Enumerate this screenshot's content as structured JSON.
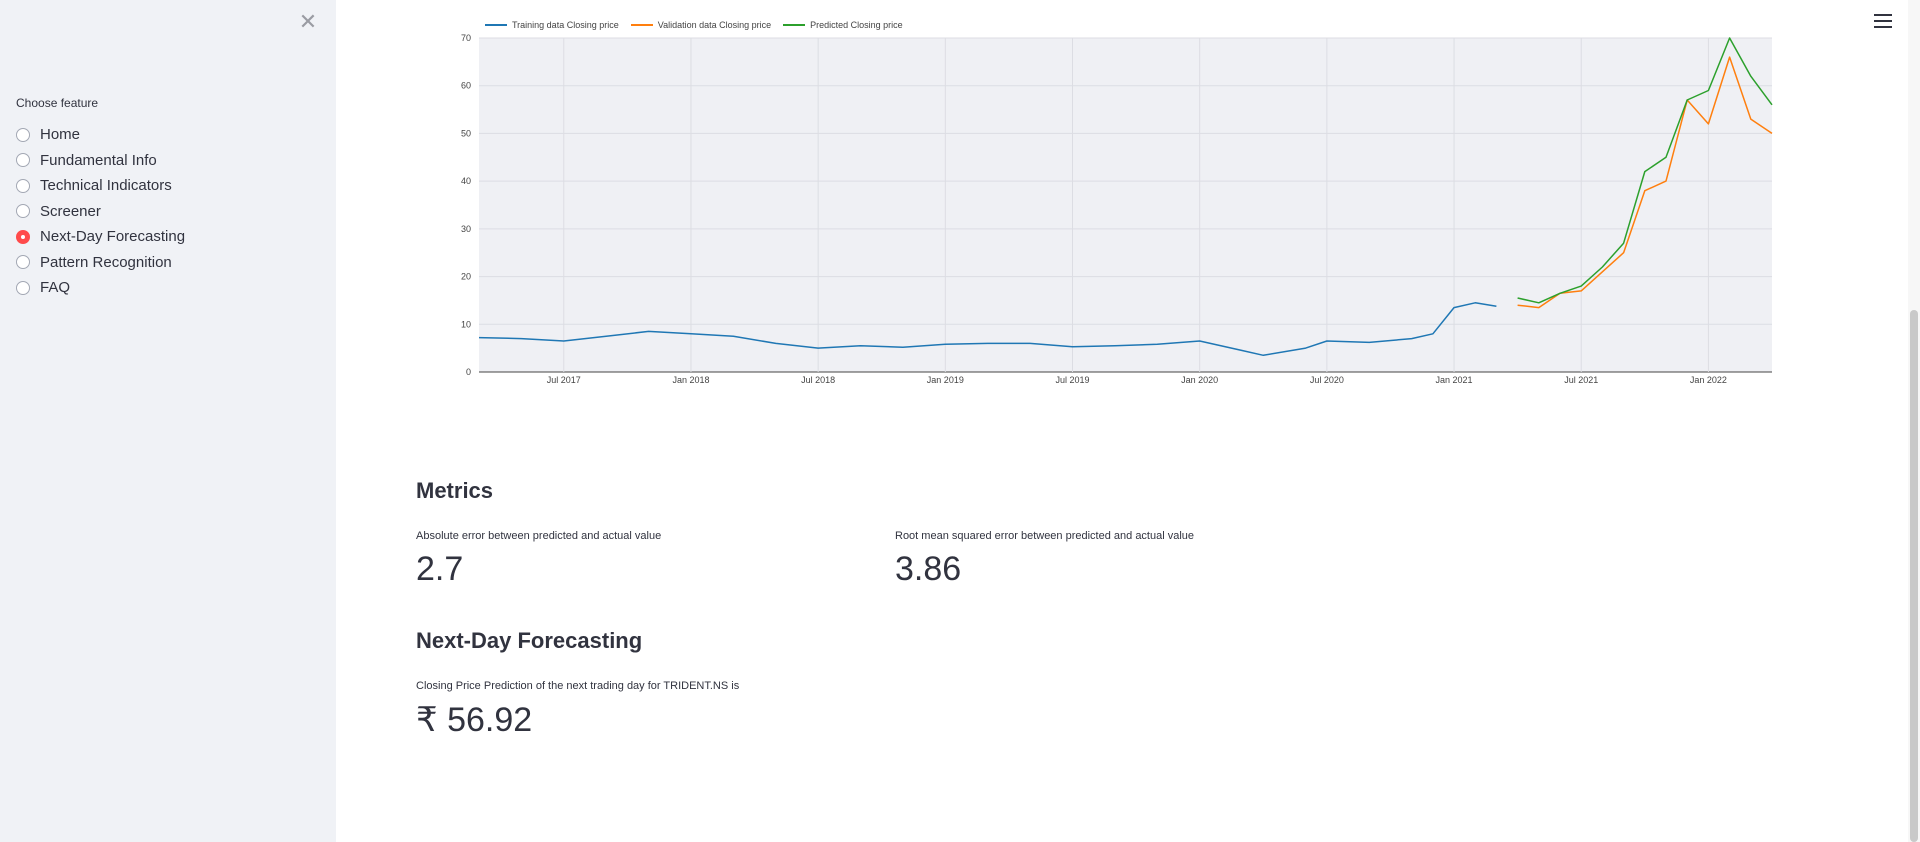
{
  "sidebar": {
    "close_icon": "close-icon",
    "choose_label": "Choose feature",
    "items": [
      {
        "label": "Home",
        "checked": false
      },
      {
        "label": "Fundamental Info",
        "checked": false
      },
      {
        "label": "Technical Indicators",
        "checked": false
      },
      {
        "label": "Screener",
        "checked": false
      },
      {
        "label": "Next-Day Forecasting",
        "checked": true
      },
      {
        "label": "Pattern Recognition",
        "checked": false
      },
      {
        "label": "FAQ",
        "checked": false
      }
    ]
  },
  "colors": {
    "accent": "#ff4b4b",
    "training": "#1f77b4",
    "validation": "#ff7f0e",
    "predicted": "#2ca02c"
  },
  "chart_data": {
    "type": "line",
    "legend": [
      "Training data Closing price",
      "Validation data Closing price",
      "Predicted Closing price"
    ],
    "x_ticks": [
      "Jul 2017",
      "Jan 2018",
      "Jul 2018",
      "Jan 2019",
      "Jul 2019",
      "Jan 2020",
      "Jul 2020",
      "Jan 2021",
      "Jul 2021",
      "Jan 2022"
    ],
    "y_ticks": [
      0,
      10,
      20,
      30,
      40,
      50,
      60,
      70
    ],
    "ylim": [
      0,
      70
    ],
    "series": [
      {
        "name": "Training data Closing price",
        "x": [
          "2017-03",
          "2017-05",
          "2017-07",
          "2017-09",
          "2017-11",
          "2018-01",
          "2018-03",
          "2018-05",
          "2018-07",
          "2018-09",
          "2018-11",
          "2019-01",
          "2019-03",
          "2019-05",
          "2019-07",
          "2019-09",
          "2019-11",
          "2020-01",
          "2020-03",
          "2020-04",
          "2020-06",
          "2020-07",
          "2020-09",
          "2020-11",
          "2020-12",
          "2021-01",
          "2021-02",
          "2021-03"
        ],
        "values": [
          7.2,
          7.0,
          6.5,
          7.5,
          8.5,
          8.0,
          7.5,
          6.0,
          5.0,
          5.5,
          5.2,
          5.8,
          6.0,
          6.0,
          5.3,
          5.5,
          5.8,
          6.5,
          4.5,
          3.5,
          5.0,
          6.5,
          6.2,
          7.0,
          8.0,
          13.5,
          14.5,
          13.8
        ]
      },
      {
        "name": "Validation data Closing price",
        "x": [
          "2021-04",
          "2021-05",
          "2021-06",
          "2021-07",
          "2021-08",
          "2021-09",
          "2021-10",
          "2021-11",
          "2021-12",
          "2022-01",
          "2022-02",
          "2022-03",
          "2022-04"
        ],
        "values": [
          14.0,
          13.5,
          16.5,
          17.0,
          21.0,
          25.0,
          38.0,
          40.0,
          57.0,
          52.0,
          66.0,
          53.0,
          50.0
        ]
      },
      {
        "name": "Predicted Closing price",
        "x": [
          "2021-04",
          "2021-05",
          "2021-06",
          "2021-07",
          "2021-08",
          "2021-09",
          "2021-10",
          "2021-11",
          "2021-12",
          "2022-01",
          "2022-02",
          "2022-03",
          "2022-04"
        ],
        "values": [
          15.5,
          14.5,
          16.5,
          18.0,
          22.0,
          27.0,
          42.0,
          45.0,
          57.0,
          59.0,
          70.0,
          62.0,
          56.0
        ]
      }
    ]
  },
  "metrics": {
    "title": "Metrics",
    "abs_label": "Absolute error between predicted and actual value",
    "abs_value": "2.7",
    "rmse_label": "Root mean squared error between predicted and actual value",
    "rmse_value": "3.86"
  },
  "forecast": {
    "title": "Next-Day Forecasting",
    "label": "Closing Price Prediction of the next trading day for TRIDENT.NS is",
    "value": "₹ 56.92"
  }
}
